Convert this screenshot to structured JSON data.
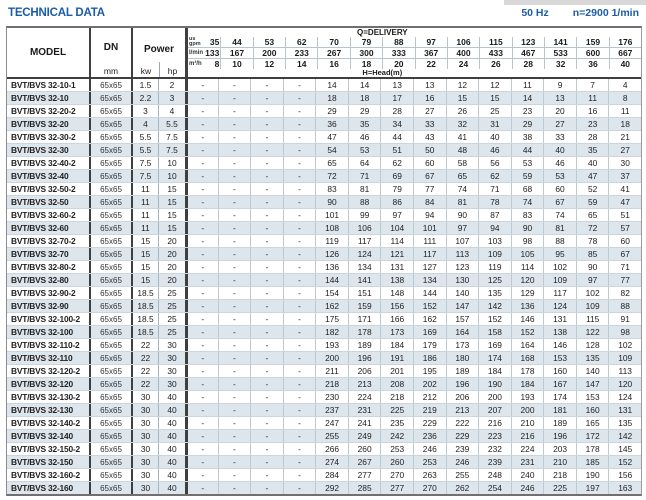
{
  "page": {
    "title": "TECHNICAL DATA",
    "frequency": "50 Hz",
    "speed": "n=2900 1/min"
  },
  "colors": {
    "accent_blue": "#1a5ca8",
    "row_shade": "#dde6ec",
    "thick_border": "#3f3f3f",
    "thin_line": "#b9c4cb"
  },
  "table": {
    "headers": {
      "model": "MODEL",
      "dn": "DN",
      "dn_unit": "mm",
      "power": "Power",
      "power_kw": "kw",
      "power_hp": "hp",
      "delivery": "Q=DELIVERY",
      "head": "H=Head(m)",
      "unit_gpm_top": "us",
      "unit_gpm_bottom": "gpm",
      "unit_lmin": "l/min",
      "unit_m3h": "m³/h"
    },
    "delivery_gpm": [
      35,
      44,
      53,
      62,
      70,
      79,
      88,
      97,
      106,
      115,
      123,
      141,
      159,
      176
    ],
    "delivery_lmin": [
      133,
      167,
      200,
      233,
      267,
      300,
      333,
      367,
      400,
      433,
      467,
      533,
      600,
      667
    ],
    "delivery_m3h": [
      8,
      10,
      12,
      14,
      16,
      18,
      20,
      22,
      24,
      26,
      28,
      32,
      36,
      40
    ],
    "rows": [
      {
        "model": "BVT/BVS 32-10-1",
        "dn": "65x65",
        "kw": "1.5",
        "hp": "2",
        "head": [
          "-",
          "-",
          "-",
          "-",
          14,
          14,
          13,
          13,
          12,
          12,
          11,
          9,
          7,
          4
        ]
      },
      {
        "model": "BVT/BVS 32-10",
        "dn": "65x65",
        "kw": "2.2",
        "hp": "3",
        "head": [
          "-",
          "-",
          "-",
          "-",
          18,
          18,
          17,
          16,
          15,
          15,
          14,
          13,
          11,
          8
        ]
      },
      {
        "model": "BVT/BVS 32-20-2",
        "dn": "65x65",
        "kw": "3",
        "hp": "4",
        "head": [
          "-",
          "-",
          "-",
          "-",
          29,
          29,
          28,
          27,
          26,
          25,
          23,
          20,
          16,
          11
        ]
      },
      {
        "model": "BVT/BVS 32-20",
        "dn": "65x65",
        "kw": "4",
        "hp": "5.5",
        "head": [
          "-",
          "-",
          "-",
          "-",
          36,
          35,
          34,
          33,
          32,
          31,
          29,
          27,
          23,
          18
        ]
      },
      {
        "model": "BVT/BVS 32-30-2",
        "dn": "65x65",
        "kw": "5.5",
        "hp": "7.5",
        "head": [
          "-",
          "-",
          "-",
          "-",
          47,
          46,
          44,
          43,
          41,
          40,
          38,
          33,
          28,
          21
        ]
      },
      {
        "model": "BVT/BVS 32-30",
        "dn": "65x65",
        "kw": "5.5",
        "hp": "7.5",
        "head": [
          "-",
          "-",
          "-",
          "-",
          54,
          53,
          51,
          50,
          48,
          46,
          44,
          40,
          35,
          27
        ]
      },
      {
        "model": "BVT/BVS 32-40-2",
        "dn": "65x65",
        "kw": "7.5",
        "hp": "10",
        "head": [
          "-",
          "-",
          "-",
          "-",
          65,
          64,
          62,
          60,
          58,
          56,
          53,
          46,
          40,
          30
        ]
      },
      {
        "model": "BVT/BVS 32-40",
        "dn": "65x65",
        "kw": "7.5",
        "hp": "10",
        "head": [
          "-",
          "-",
          "-",
          "-",
          72,
          71,
          69,
          67,
          65,
          62,
          59,
          53,
          47,
          37
        ]
      },
      {
        "model": "BVT/BVS 32-50-2",
        "dn": "65x65",
        "kw": "11",
        "hp": "15",
        "head": [
          "-",
          "-",
          "-",
          "-",
          83,
          81,
          79,
          77,
          74,
          71,
          68,
          60,
          52,
          41
        ]
      },
      {
        "model": "BVT/BVS 32-50",
        "dn": "65x65",
        "kw": "11",
        "hp": "15",
        "head": [
          "-",
          "-",
          "-",
          "-",
          90,
          88,
          86,
          84,
          81,
          78,
          74,
          67,
          59,
          47
        ]
      },
      {
        "model": "BVT/BVS 32-60-2",
        "dn": "65x65",
        "kw": "11",
        "hp": "15",
        "head": [
          "-",
          "-",
          "-",
          "-",
          101,
          99,
          97,
          94,
          90,
          87,
          83,
          74,
          65,
          51
        ]
      },
      {
        "model": "BVT/BVS 32-60",
        "dn": "65x65",
        "kw": "11",
        "hp": "15",
        "head": [
          "-",
          "-",
          "-",
          "-",
          108,
          106,
          104,
          101,
          97,
          94,
          90,
          81,
          72,
          57
        ]
      },
      {
        "model": "BVT/BVS 32-70-2",
        "dn": "65x65",
        "kw": "15",
        "hp": "20",
        "head": [
          "-",
          "-",
          "-",
          "-",
          119,
          117,
          114,
          111,
          107,
          103,
          98,
          88,
          78,
          60
        ]
      },
      {
        "model": "BVT/BVS 32-70",
        "dn": "65x65",
        "kw": "15",
        "hp": "20",
        "head": [
          "-",
          "-",
          "-",
          "-",
          126,
          124,
          121,
          117,
          113,
          109,
          105,
          95,
          85,
          67
        ]
      },
      {
        "model": "BVT/BVS 32-80-2",
        "dn": "65x65",
        "kw": "15",
        "hp": "20",
        "head": [
          "-",
          "-",
          "-",
          "-",
          136,
          134,
          131,
          127,
          123,
          119,
          114,
          102,
          90,
          71
        ]
      },
      {
        "model": "BVT/BVS 32-80",
        "dn": "65x65",
        "kw": "15",
        "hp": "20",
        "head": [
          "-",
          "-",
          "-",
          "-",
          144,
          141,
          138,
          134,
          130,
          125,
          120,
          109,
          97,
          77
        ]
      },
      {
        "model": "BVT/BVS 32-90-2",
        "dn": "65x65",
        "kw": "18.5",
        "hp": "25",
        "head": [
          "-",
          "-",
          "-",
          "-",
          154,
          151,
          148,
          144,
          140,
          135,
          129,
          117,
          102,
          82
        ]
      },
      {
        "model": "BVT/BVS 32-90",
        "dn": "65x65",
        "kw": "18.5",
        "hp": "25",
        "head": [
          "-",
          "-",
          "-",
          "-",
          162,
          159,
          156,
          152,
          147,
          142,
          136,
          124,
          109,
          88
        ]
      },
      {
        "model": "BVT/BVS 32-100-2",
        "dn": "65x65",
        "kw": "18.5",
        "hp": "25",
        "head": [
          "-",
          "-",
          "-",
          "-",
          175,
          171,
          166,
          162,
          157,
          152,
          146,
          131,
          115,
          91
        ]
      },
      {
        "model": "BVT/BVS 32-100",
        "dn": "65x65",
        "kw": "18.5",
        "hp": "25",
        "head": [
          "-",
          "-",
          "-",
          "-",
          182,
          178,
          173,
          169,
          164,
          158,
          152,
          138,
          122,
          98
        ]
      },
      {
        "model": "BVT/BVS 32-110-2",
        "dn": "65x65",
        "kw": "22",
        "hp": "30",
        "head": [
          "-",
          "-",
          "-",
          "-",
          193,
          189,
          184,
          179,
          173,
          169,
          164,
          146,
          128,
          102
        ]
      },
      {
        "model": "BVT/BVS 32-110",
        "dn": "65x65",
        "kw": "22",
        "hp": "30",
        "head": [
          "-",
          "-",
          "-",
          "-",
          200,
          196,
          191,
          186,
          180,
          174,
          168,
          153,
          135,
          109
        ]
      },
      {
        "model": "BVT/BVS 32-120-2",
        "dn": "65x65",
        "kw": "22",
        "hp": "30",
        "head": [
          "-",
          "-",
          "-",
          "-",
          211,
          206,
          201,
          195,
          189,
          184,
          178,
          160,
          140,
          113
        ]
      },
      {
        "model": "BVT/BVS 32-120",
        "dn": "65x65",
        "kw": "22",
        "hp": "30",
        "head": [
          "-",
          "-",
          "-",
          "-",
          218,
          213,
          208,
          202,
          196,
          190,
          184,
          167,
          147,
          120
        ]
      },
      {
        "model": "BVT/BVS 32-130-2",
        "dn": "65x65",
        "kw": "30",
        "hp": "40",
        "head": [
          "-",
          "-",
          "-",
          "-",
          230,
          224,
          218,
          212,
          206,
          200,
          193,
          174,
          153,
          124
        ]
      },
      {
        "model": "BVT/BVS 32-130",
        "dn": "65x65",
        "kw": "30",
        "hp": "40",
        "head": [
          "-",
          "-",
          "-",
          "-",
          237,
          231,
          225,
          219,
          213,
          207,
          200,
          181,
          160,
          131
        ]
      },
      {
        "model": "BVT/BVS 32-140-2",
        "dn": "65x65",
        "kw": "30",
        "hp": "40",
        "head": [
          "-",
          "-",
          "-",
          "-",
          247,
          241,
          235,
          229,
          222,
          216,
          210,
          189,
          165,
          135
        ]
      },
      {
        "model": "BVT/BVS 32-140",
        "dn": "65x65",
        "kw": "30",
        "hp": "40",
        "head": [
          "-",
          "-",
          "-",
          "-",
          255,
          249,
          242,
          236,
          229,
          223,
          216,
          196,
          172,
          142
        ]
      },
      {
        "model": "BVT/BVS 32-150-2",
        "dn": "65x65",
        "kw": "30",
        "hp": "40",
        "head": [
          "-",
          "-",
          "-",
          "-",
          266,
          260,
          253,
          246,
          239,
          232,
          224,
          203,
          178,
          145
        ]
      },
      {
        "model": "BVT/BVS 32-150",
        "dn": "65x65",
        "kw": "30",
        "hp": "40",
        "head": [
          "-",
          "-",
          "-",
          "-",
          274,
          267,
          260,
          253,
          246,
          239,
          231,
          210,
          185,
          152
        ]
      },
      {
        "model": "BVT/BVS 32-160-2",
        "dn": "65x65",
        "kw": "30",
        "hp": "40",
        "head": [
          "-",
          "-",
          "-",
          "-",
          284,
          277,
          270,
          263,
          255,
          248,
          240,
          218,
          190,
          156
        ]
      },
      {
        "model": "BVT/BVS 32-160",
        "dn": "65x65",
        "kw": "30",
        "hp": "40",
        "head": [
          "-",
          "-",
          "-",
          "-",
          292,
          285,
          277,
          270,
          262,
          254,
          246,
          225,
          197,
          163
        ]
      }
    ]
  }
}
